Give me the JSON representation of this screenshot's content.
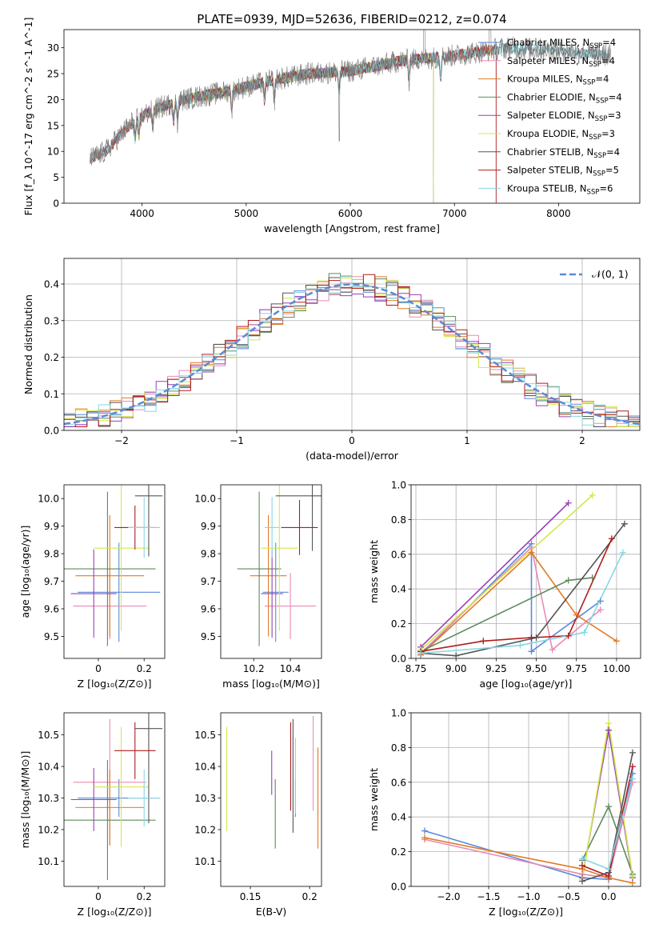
{
  "title": "PLATE=0939, MJD=52636, FIBERID=0212, z=0.074",
  "colors": {
    "Chabrier MILES": "#5a8ad8",
    "Salpeter MILES": "#e98bb5",
    "Kroupa MILES": "#e07b27",
    "Chabrier ELODIE": "#5e8a5e",
    "Salpeter ELODIE": "#9a3fb5",
    "Kroupa ELODIE": "#d4e84a",
    "Chabrier STELIB": "#555555",
    "Salpeter STELIB": "#b11d1d",
    "Kroupa STELIB": "#86d7e3"
  },
  "chart_data": [
    {
      "type": "line",
      "name": "spectrum",
      "xlabel": "wavelength [Angstrom, rest frame]",
      "ylabel": "Flux [f_λ 10^-17 erg cm^-2 s^-1 A^-1]",
      "xlim": [
        3250,
        8780
      ],
      "ylim": [
        0,
        33.5
      ],
      "xticks": [
        4000,
        5000,
        6000,
        7000,
        8000
      ],
      "yticks": [
        0,
        5,
        10,
        15,
        20,
        25,
        30
      ],
      "legend": [
        {
          "label": "Chabrier MILES, N",
          "sub": "SSP",
          "tail": "=4",
          "series": "Chabrier MILES"
        },
        {
          "label": "Salpeter MILES, N",
          "sub": "SSP",
          "tail": "=4",
          "series": "Salpeter MILES"
        },
        {
          "label": "Kroupa MILES, N",
          "sub": "SSP",
          "tail": "=4",
          "series": "Kroupa MILES"
        },
        {
          "label": "Chabrier ELODIE, N",
          "sub": "SSP",
          "tail": "=4",
          "series": "Chabrier ELODIE"
        },
        {
          "label": "Salpeter ELODIE, N",
          "sub": "SSP",
          "tail": "=3",
          "series": "Salpeter ELODIE"
        },
        {
          "label": "Kroupa ELODIE, N",
          "sub": "SSP",
          "tail": "=3",
          "series": "Kroupa ELODIE"
        },
        {
          "label": "Chabrier STELIB, N",
          "sub": "SSP",
          "tail": "=4",
          "series": "Chabrier STELIB"
        },
        {
          "label": "Salpeter STELIB, N",
          "sub": "SSP",
          "tail": "=5",
          "series": "Salpeter STELIB"
        },
        {
          "label": "Kroupa STELIB, N",
          "sub": "SSP",
          "tail": "=6",
          "series": "Kroupa STELIB"
        }
      ],
      "continuum": [
        [
          3500,
          8.5
        ],
        [
          3650,
          10
        ],
        [
          3900,
          15.5
        ],
        [
          4100,
          18
        ],
        [
          4400,
          20
        ],
        [
          4800,
          21.5
        ],
        [
          5200,
          23.5
        ],
        [
          5600,
          25
        ],
        [
          6000,
          25.5
        ],
        [
          6500,
          27.5
        ],
        [
          7000,
          28.5
        ],
        [
          7500,
          30
        ],
        [
          8000,
          29.5
        ],
        [
          8500,
          28.5
        ]
      ],
      "model_ranges": [
        {
          "series": "Chabrier MILES",
          "range": [
            3500,
            7400
          ]
        },
        {
          "series": "Salpeter MILES",
          "range": [
            3500,
            7400
          ]
        },
        {
          "series": "Kroupa MILES",
          "range": [
            3500,
            7400
          ]
        },
        {
          "series": "Chabrier ELODIE",
          "range": [
            3900,
            6800
          ]
        },
        {
          "series": "Salpeter ELODIE",
          "range": [
            3900,
            6800
          ]
        },
        {
          "series": "Kroupa ELODIE",
          "range": [
            3900,
            6800
          ]
        },
        {
          "series": "Chabrier STELIB",
          "range": [
            3500,
            8500
          ]
        },
        {
          "series": "Salpeter STELIB",
          "range": [
            3500,
            7400
          ]
        },
        {
          "series": "Kroupa STELIB",
          "range": [
            3500,
            8500
          ]
        }
      ]
    },
    {
      "type": "line",
      "name": "residual histogram",
      "xlabel": "(data-model)/error",
      "ylabel": "Normed distribution",
      "xlim": [
        -2.5,
        2.5
      ],
      "ylim": [
        0,
        0.47
      ],
      "xticks": [
        -2,
        -1,
        0,
        1,
        2
      ],
      "xticklabels": [
        "−2",
        "−1",
        "0",
        "1",
        "2"
      ],
      "yticks": [
        0.0,
        0.1,
        0.2,
        0.3,
        0.4
      ],
      "grid": true,
      "legend_label": "𝒩(0, 1)",
      "bin_width": 0.1,
      "bin_start": -2.5
    },
    {
      "type": "scatter",
      "name": "age vs metallicity",
      "xlabel": "Z [log₁₀(Z/Z⊙)]",
      "ylabel": "age  [log₁₀(age/yr)]",
      "xlim": [
        -0.15,
        0.29
      ],
      "ylim": [
        9.42,
        10.05
      ],
      "xticks": [
        0.0,
        0.2
      ],
      "yticks": [
        9.5,
        9.6,
        9.7,
        9.8,
        9.9,
        10.0
      ],
      "points": [
        {
          "series": "Chabrier MILES",
          "x": 0.09,
          "xerr": 0.18,
          "y": 9.66,
          "yerr": 0.18
        },
        {
          "series": "Salpeter MILES",
          "x": 0.05,
          "xerr": 0.16,
          "y": 9.61,
          "yerr": 0.12
        },
        {
          "series": "Kroupa MILES",
          "x": 0.05,
          "xerr": 0.15,
          "y": 9.72,
          "yerr": 0.22
        },
        {
          "series": "Chabrier ELODIE",
          "x": 0.04,
          "xerr": 0.21,
          "y": 9.745,
          "yerr": 0.28
        },
        {
          "series": "Salpeter ELODIE",
          "x": -0.02,
          "xerr": 0.1,
          "y": 9.655,
          "yerr": 0.16
        },
        {
          "series": "Kroupa ELODIE",
          "x": 0.1,
          "xerr": 0.12,
          "y": 9.82,
          "yerr": 0.3
        },
        {
          "series": "Chabrier STELIB",
          "x": 0.22,
          "xerr": 0.06,
          "y": 10.01,
          "yerr": 0.22
        },
        {
          "series": "Salpeter STELIB",
          "x": 0.16,
          "xerr": 0.09,
          "y": 9.895,
          "yerr": 0.08
        },
        {
          "series": "Kroupa STELIB",
          "x": 0.2,
          "xerr": 0.07,
          "y": 9.895,
          "yerr": 0.11
        }
      ]
    },
    {
      "type": "scatter",
      "name": "age vs mass",
      "xlabel": "mass [log₁₀(M/M⊙)]",
      "ylabel": "",
      "xlim": [
        10.02,
        10.57
      ],
      "ylim": [
        9.42,
        10.05
      ],
      "xticks": [
        10.2,
        10.4
      ],
      "yticks": [
        9.5,
        9.6,
        9.7,
        9.8,
        9.9,
        10.0
      ],
      "points": [
        {
          "series": "Chabrier MILES",
          "x": 10.32,
          "xerr": 0.07,
          "y": 9.66,
          "yerr": 0.18
        },
        {
          "series": "Salpeter MILES",
          "x": 10.4,
          "xerr": 0.14,
          "y": 9.61,
          "yerr": 0.12
        },
        {
          "series": "Kroupa MILES",
          "x": 10.28,
          "xerr": 0.1,
          "y": 9.72,
          "yerr": 0.22
        },
        {
          "series": "Chabrier ELODIE",
          "x": 10.23,
          "xerr": 0.12,
          "y": 9.745,
          "yerr": 0.28
        },
        {
          "series": "Salpeter ELODIE",
          "x": 10.3,
          "xerr": 0.06,
          "y": 9.655,
          "yerr": 0.16
        },
        {
          "series": "Kroupa ELODIE",
          "x": 10.34,
          "xerr": 0.1,
          "y": 9.82,
          "yerr": 0.3
        },
        {
          "series": "Chabrier STELIB",
          "x": 10.52,
          "xerr": 0.2,
          "y": 10.01,
          "yerr": 0.2
        },
        {
          "series": "Salpeter STELIB",
          "x": 10.45,
          "xerr": 0.1,
          "y": 9.895,
          "yerr": 0.1
        },
        {
          "series": "Kroupa STELIB",
          "x": 10.3,
          "xerr": 0.04,
          "y": 9.895,
          "yerr": 0.11
        }
      ]
    },
    {
      "type": "line",
      "name": "age mass weights",
      "xlabel": "age  [log₁₀(age/yr)]",
      "ylabel": "mass weight",
      "xlim": [
        8.72,
        10.15
      ],
      "ylim": [
        0,
        1.0
      ],
      "xticks": [
        8.75,
        9.0,
        9.25,
        9.5,
        9.75,
        10.0
      ],
      "xticklabels": [
        "8.75",
        "9.00",
        "9.25",
        "9.50",
        "9.75",
        "10.00"
      ],
      "yticks": [
        0.0,
        0.2,
        0.4,
        0.6,
        0.8,
        1.0
      ],
      "grid": true,
      "series": [
        {
          "series": "Chabrier MILES",
          "x": [
            8.78,
            9.47,
            9.47,
            9.9
          ],
          "y": [
            0.02,
            0.66,
            0.04,
            0.33
          ]
        },
        {
          "series": "Salpeter MILES",
          "x": [
            8.78,
            9.47,
            9.6,
            9.9
          ],
          "y": [
            0.03,
            0.64,
            0.05,
            0.28
          ]
        },
        {
          "series": "Kroupa MILES",
          "x": [
            8.78,
            9.47,
            9.75,
            10.0
          ],
          "y": [
            0.02,
            0.61,
            0.25,
            0.1
          ]
        },
        {
          "series": "Chabrier ELODIE",
          "x": [
            8.78,
            9.7,
            9.85
          ],
          "y": [
            0.04,
            0.45,
            0.465
          ]
        },
        {
          "series": "Salpeter ELODIE",
          "x": [
            8.78,
            9.7
          ],
          "y": [
            0.065,
            0.895
          ]
        },
        {
          "series": "Kroupa ELODIE",
          "x": [
            8.78,
            9.85
          ],
          "y": [
            0.05,
            0.94
          ]
        },
        {
          "series": "Chabrier STELIB",
          "x": [
            8.78,
            9.0,
            9.5,
            10.05
          ],
          "y": [
            0.03,
            0.015,
            0.12,
            0.775
          ]
        },
        {
          "series": "Salpeter STELIB",
          "x": [
            8.78,
            9.17,
            9.47,
            9.7,
            9.97
          ],
          "y": [
            0.04,
            0.1,
            0.12,
            0.13,
            0.69
          ]
        },
        {
          "series": "Kroupa STELIB",
          "x": [
            8.78,
            9.4,
            9.8,
            10.04
          ],
          "y": [
            0.03,
            0.075,
            0.15,
            0.61
          ]
        }
      ]
    },
    {
      "type": "scatter",
      "name": "mass vs metallicity",
      "xlabel": "Z [log₁₀(Z/Z⊙)]",
      "ylabel": "mass [log₁₀(M/M⊙)]",
      "xlim": [
        -0.15,
        0.29
      ],
      "ylim": [
        10.02,
        10.57
      ],
      "xticks": [
        0.0,
        0.2
      ],
      "yticks": [
        10.1,
        10.2,
        10.3,
        10.4,
        10.5
      ],
      "points": [
        {
          "series": "Chabrier MILES",
          "x": 0.09,
          "xerr": 0.18,
          "y": 10.3,
          "yerr": 0.06
        },
        {
          "series": "Salpeter MILES",
          "x": 0.05,
          "xerr": 0.16,
          "y": 10.35,
          "yerr": 0.2
        },
        {
          "series": "Kroupa MILES",
          "x": 0.05,
          "xerr": 0.15,
          "y": 10.27,
          "yerr": 0.12
        },
        {
          "series": "Chabrier ELODIE",
          "x": 0.04,
          "xerr": 0.21,
          "y": 10.23,
          "yerr": 0.19
        },
        {
          "series": "Salpeter ELODIE",
          "x": -0.02,
          "xerr": 0.1,
          "y": 10.295,
          "yerr": 0.1
        },
        {
          "series": "Kroupa ELODIE",
          "x": 0.1,
          "xerr": 0.12,
          "y": 10.335,
          "yerr": 0.19
        },
        {
          "series": "Chabrier STELIB",
          "x": 0.22,
          "xerr": 0.06,
          "y": 10.52,
          "yerr": 0.3
        },
        {
          "series": "Salpeter STELIB",
          "x": 0.16,
          "xerr": 0.09,
          "y": 10.45,
          "yerr": 0.09
        },
        {
          "series": "Kroupa STELIB",
          "x": 0.2,
          "xerr": 0.07,
          "y": 10.3,
          "yerr": 0.09
        }
      ]
    },
    {
      "type": "scatter",
      "name": "mass vs extinction",
      "xlabel": "E(B-V)",
      "ylabel": "",
      "xlim": [
        0.125,
        0.21
      ],
      "ylim": [
        10.02,
        10.57
      ],
      "xticks": [
        0.15,
        0.2
      ],
      "yticks": [
        10.1,
        10.2,
        10.3,
        10.4,
        10.5
      ],
      "points": [
        {
          "series": "Chabrier MILES",
          "x": 0.188,
          "y": 10.3,
          "yerr": 0.06
        },
        {
          "series": "Salpeter MILES",
          "x": 0.203,
          "y": 10.41,
          "yerr": 0.15
        },
        {
          "series": "Kroupa MILES",
          "x": 0.207,
          "y": 10.3,
          "yerr": 0.16
        },
        {
          "series": "Chabrier ELODIE",
          "x": 0.171,
          "y": 10.25,
          "yerr": 0.11
        },
        {
          "series": "Salpeter ELODIE",
          "x": 0.168,
          "y": 10.38,
          "yerr": 0.07
        },
        {
          "series": "Kroupa ELODIE",
          "x": 0.13,
          "y": 10.36,
          "yerr": 0.165
        },
        {
          "series": "Chabrier STELIB",
          "x": 0.186,
          "y": 10.37,
          "yerr": 0.18
        },
        {
          "series": "Salpeter STELIB",
          "x": 0.184,
          "y": 10.4,
          "yerr": 0.14
        },
        {
          "series": "Kroupa STELIB",
          "x": 0.188,
          "y": 10.37,
          "yerr": 0.12
        }
      ]
    },
    {
      "type": "line",
      "name": "metallicity mass weights",
      "xlabel": "Z [log₁₀(Z/Z⊙)]",
      "ylabel": "mass weight",
      "xlim": [
        -2.47,
        0.4
      ],
      "ylim": [
        0,
        1.0
      ],
      "xticks": [
        -2.0,
        -1.5,
        -1.0,
        -0.5,
        0.0
      ],
      "xticklabels": [
        "−2.0",
        "−1.5",
        "−1.0",
        "−0.5",
        "0.0"
      ],
      "yticks": [
        0.0,
        0.2,
        0.4,
        0.6,
        0.8,
        1.0
      ],
      "grid": true,
      "series": [
        {
          "series": "Chabrier MILES",
          "x": [
            -2.3,
            -0.33,
            0.0,
            0.3
          ],
          "y": [
            0.32,
            0.05,
            0.04,
            0.65
          ]
        },
        {
          "series": "Salpeter MILES",
          "x": [
            -2.3,
            -0.33,
            0.0,
            0.3
          ],
          "y": [
            0.27,
            0.07,
            0.05,
            0.6
          ]
        },
        {
          "series": "Kroupa MILES",
          "x": [
            -2.3,
            -0.33,
            0.0,
            0.3
          ],
          "y": [
            0.28,
            0.1,
            0.05,
            0.02
          ]
        },
        {
          "series": "Chabrier ELODIE",
          "x": [
            -0.33,
            0.0,
            0.3
          ],
          "y": [
            0.15,
            0.46,
            0.07
          ]
        },
        {
          "series": "Salpeter ELODIE",
          "x": [
            -0.33,
            0.0,
            0.3
          ],
          "y": [
            0.05,
            0.9,
            0.05
          ]
        },
        {
          "series": "Kroupa ELODIE",
          "x": [
            -0.33,
            0.0,
            0.3
          ],
          "y": [
            0.04,
            0.94,
            0.06
          ]
        },
        {
          "series": "Chabrier STELIB",
          "x": [
            -0.33,
            0.0,
            0.3
          ],
          "y": [
            0.03,
            0.08,
            0.77
          ]
        },
        {
          "series": "Salpeter STELIB",
          "x": [
            -0.33,
            0.0,
            0.3
          ],
          "y": [
            0.12,
            0.06,
            0.69
          ]
        },
        {
          "series": "Kroupa STELIB",
          "x": [
            -0.33,
            0.0,
            0.3
          ],
          "y": [
            0.16,
            0.1,
            0.62
          ]
        }
      ]
    }
  ]
}
